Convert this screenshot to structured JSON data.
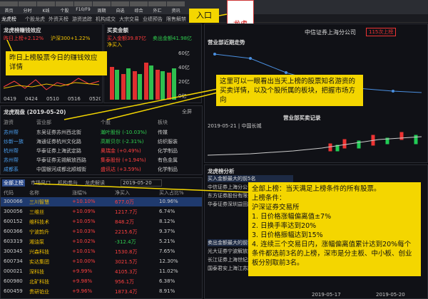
{
  "toolbar": {
    "icons": [
      "首页",
      "分时",
      "K线",
      "个股",
      "F10/F9",
      "周期",
      "自选",
      "综合",
      "外汇",
      "资讯"
    ],
    "entry_label": "入口",
    "dragon_button": "龙虎"
  },
  "menu_tabs": [
    "龙虎榜",
    "个股龙虎",
    "外资天榜",
    "游资追踪",
    "机构成交",
    "大宗交易",
    "业绩预告",
    "限售解禁",
    "新股申购"
  ],
  "profit_panel": {
    "title": "龙虎榜赚钱效应",
    "legend": [
      "昨日上榜+2.12%",
      "沪深300+1.22%"
    ],
    "dates": [
      "0419",
      "0424",
      "0510",
      "0516",
      "0520"
    ]
  },
  "trade_panel": {
    "title": "买卖金额",
    "legend": [
      "买入金额39.87亿",
      "卖出金额41.98亿",
      "净买入"
    ],
    "axis": [
      "60亿",
      "40亿",
      "20亿",
      "0亿"
    ]
  },
  "watch_panel": {
    "title": "龙虎观盘 (2019-05-20)",
    "fullscreen": "全屏",
    "columns": [
      "游资",
      "营业部",
      "个股",
      "板块"
    ],
    "rows": [
      [
        "苏州帮",
        "东吴证券苏州西北街",
        "瀚叶股份 (-10.03%)",
        "传媒"
      ],
      [
        "炒新一族",
        "海通证券杭州文化路",
        "高斯贝尔 (-2.31%)",
        "纺织服装"
      ],
      [
        "杭州帮",
        "华泰证券上海武定路",
        "奥瑞金 (+0.49%)",
        "化学制品"
      ],
      [
        "苏州帮",
        "华泰证券无锡解放西路",
        "集泰股份 (+1.94%)",
        "有色金属"
      ],
      [
        "成都系",
        "中国银河成都北顺城街",
        "盛讯达 (+3.59%)",
        "化学制品"
      ]
    ]
  },
  "list_panel": {
    "tabs": [
      "全部上榜",
      "市场风口",
      "机构参与",
      "龙虎解读"
    ],
    "date": "2019-05-20",
    "columns": [
      "代码",
      "名称",
      "涨幅%",
      "净买入",
      "买入占比%"
    ],
    "rows": [
      [
        "300066",
        "三川智慧",
        "+10.10%",
        "677.0万",
        "10.96%"
      ],
      [
        "300056",
        "三维丝",
        "+10.09%",
        "1217.7万",
        "6.74%"
      ],
      [
        "600152",
        "维科技术",
        "+10.05%",
        "848.2万",
        "8.12%"
      ],
      [
        "600366",
        "宁波韵升",
        "+10.03%",
        "2215.6万",
        "9.37%"
      ],
      [
        "603319",
        "湘油泵",
        "+10.02%",
        "-312.4万",
        "5.21%"
      ],
      [
        "300345",
        "兴森科技",
        "+10.01%",
        "1530.8万",
        "7.65%"
      ],
      [
        "600734",
        "实达集团",
        "+10.00%",
        "3021.5万",
        "12.30%"
      ],
      [
        "000021",
        "深科技",
        "+9.99%",
        "4105.3万",
        "11.02%"
      ],
      [
        "600980",
        "北矿科技",
        "+9.98%",
        "956.1万",
        "6.38%"
      ],
      [
        "600459",
        "贵研铂业",
        "+9.96%",
        "1873.4万",
        "8.91%"
      ]
    ]
  },
  "branch_panel": {
    "name": "中信证券上海分公司",
    "count": "115次上榜",
    "trend_title": "营业部近期走势",
    "record_title": "营业部买卖记录",
    "record_info": "2019-05-21 | 中国长城",
    "dates": [
      "2019-05-17",
      "2019-05-20"
    ]
  },
  "analysis_panel": {
    "title": "龙虎榜分析",
    "buy_title": "买入金额最大的前5名",
    "buy_rows": [
      "中信证券上海分公司",
      "东方证券股份有限公司",
      "华泰证券深圳益田路"
    ],
    "sell_title": "卖出金额最大的前5名",
    "sell_rows": [
      "光大证券宁波解放南路",
      "长江证券上海世纪大道",
      "国泰君安上海江苏路"
    ]
  },
  "annotations": {
    "profit": "昨日上榜股票今日的赚钱效应详情",
    "watch": "这里可以一眼看出当天上榜的股票知名游资的买卖详情，以及个股所属的板块，把握市场方向",
    "rules": {
      "heading": "全部上榜：当天满足上榜条件的所有股票。",
      "label": "上榜条件：",
      "exchange": "沪深证券交易所",
      "items": [
        "1. 日价格涨幅偏离值±7%",
        "2. 日换手率达到20%",
        "3. 日价格振幅达到15%",
        "4. 连续三个交易日内，涨幅偏离值累计达到20%每个条件都选前3名的上榜，深市是分主板、中小板、创业板分别取前3名。"
      ]
    }
  }
}
